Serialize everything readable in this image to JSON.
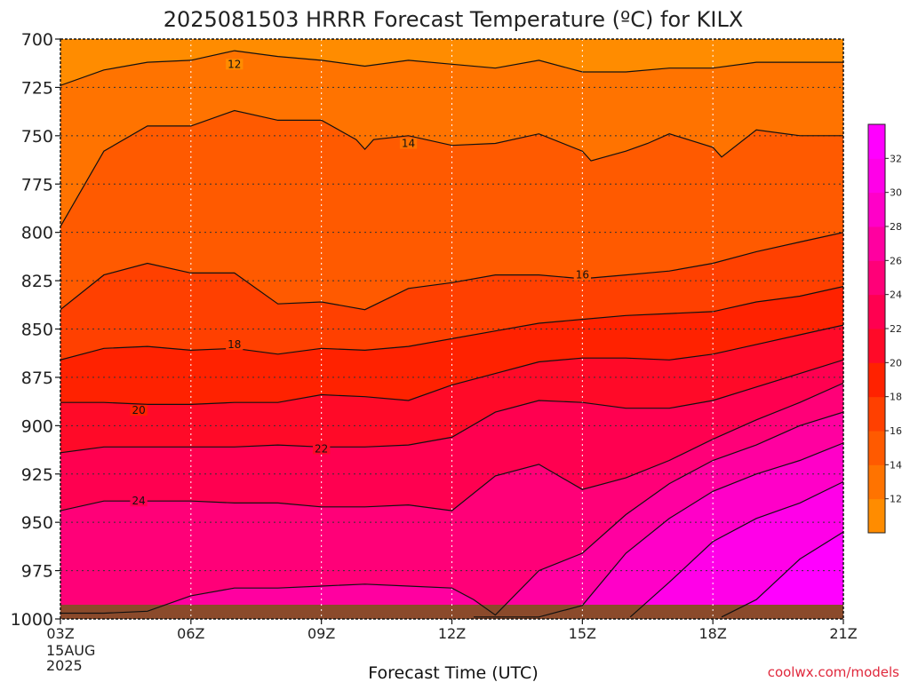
{
  "chart_data": {
    "type": "contour",
    "title": "2025081503 HRRR Forecast Temperature (ºC) for KILX",
    "xlabel": "Forecast Time (UTC)",
    "ylabel": "",
    "x_tick_labels": [
      "03Z",
      "06Z",
      "09Z",
      "12Z",
      "15Z",
      "18Z",
      "21Z"
    ],
    "x_start_date": [
      "15AUG",
      "2025"
    ],
    "x_hours": [
      3,
      6,
      9,
      12,
      15,
      18,
      21
    ],
    "x_range": [
      3,
      21
    ],
    "y_tick_labels": [
      "700",
      "725",
      "750",
      "775",
      "800",
      "825",
      "850",
      "875",
      "900",
      "925",
      "950",
      "975",
      "1000"
    ],
    "y_values": [
      700,
      725,
      750,
      775,
      800,
      825,
      850,
      875,
      900,
      925,
      950,
      975,
      1000
    ],
    "y_range": [
      700,
      1000
    ],
    "y_axis_inverted": true,
    "grid": true,
    "colorbar": {
      "placement": "right",
      "levels": [
        10,
        12,
        14,
        16,
        18,
        20,
        22,
        24,
        26,
        28,
        30,
        32,
        34
      ],
      "tick_labels": [
        "12",
        "14",
        "16",
        "18",
        "20",
        "22",
        "24",
        "26",
        "28",
        "30",
        "32"
      ],
      "colors": [
        "#ff8c00",
        "#ff7300",
        "#ff5a00",
        "#ff4000",
        "#ff2200",
        "#ff0a28",
        "#ff0050",
        "#ff0078",
        "#ff00a0",
        "#ff00c8",
        "#ff00e8",
        "#ff00ff"
      ]
    },
    "contours": [
      {
        "level": 12,
        "label": "12",
        "label_at": [
          7.0,
          713
        ],
        "x": [
          3,
          4,
          5,
          6,
          7,
          8,
          9,
          10,
          11,
          12,
          13,
          14,
          15,
          16,
          17,
          18,
          19,
          20,
          21
        ],
        "y": [
          724,
          716,
          712,
          711,
          706,
          709,
          711,
          714,
          711,
          713,
          715,
          711,
          717,
          717,
          715,
          715,
          712,
          712,
          712
        ]
      },
      {
        "level": 14,
        "label": "14",
        "label_at": [
          11.0,
          754
        ],
        "x": [
          3,
          4,
          5,
          6,
          7,
          8,
          9,
          9.8,
          10,
          10.2,
          11,
          12,
          13,
          14,
          15,
          15.2,
          16,
          16.5,
          17,
          18,
          18.2,
          19,
          20,
          21
        ],
        "y": [
          797,
          758,
          745,
          745,
          737,
          742,
          742,
          752,
          757,
          752,
          750,
          755,
          754,
          749,
          758,
          763,
          758,
          754,
          749,
          756,
          761,
          747,
          750,
          750
        ]
      },
      {
        "level": 16,
        "label": "16",
        "label_at": [
          15.0,
          822
        ],
        "x": [
          3,
          4,
          5,
          6,
          7,
          8,
          9,
          10,
          11,
          12,
          13,
          14,
          15,
          16,
          17,
          18,
          19,
          20,
          21
        ],
        "y": [
          840,
          822,
          816,
          821,
          821,
          837,
          836,
          840,
          829,
          826,
          822,
          822,
          824,
          822,
          820,
          816,
          810,
          805,
          800
        ]
      },
      {
        "level": 18,
        "label": "18",
        "label_at": [
          7.0,
          858
        ],
        "x": [
          3,
          4,
          5,
          6,
          7,
          8,
          9,
          10,
          11,
          12,
          13,
          14,
          15,
          16,
          17,
          18,
          19,
          20,
          21
        ],
        "y": [
          866,
          860,
          859,
          861,
          860,
          863,
          860,
          861,
          859,
          855,
          851,
          847,
          845,
          843,
          842,
          841,
          836,
          833,
          828
        ]
      },
      {
        "level": 20,
        "label": "20",
        "label_at": [
          4.8,
          892
        ],
        "x": [
          3,
          4,
          5,
          6,
          7,
          8,
          9,
          10,
          11,
          12,
          13,
          14,
          15,
          16,
          17,
          18,
          19,
          20,
          21
        ],
        "y": [
          888,
          888,
          889,
          889,
          888,
          888,
          884,
          885,
          887,
          879,
          873,
          867,
          865,
          865,
          866,
          863,
          858,
          853,
          848
        ]
      },
      {
        "level": 22,
        "label": "22",
        "label_at": [
          9.0,
          912
        ],
        "x": [
          3,
          4,
          5,
          6,
          7,
          8,
          9,
          10,
          11,
          12,
          13,
          14,
          15,
          16,
          17,
          18,
          19,
          20,
          21
        ],
        "y": [
          914,
          911,
          911,
          911,
          911,
          910,
          911,
          911,
          910,
          906,
          893,
          887,
          888,
          891,
          891,
          887,
          880,
          873,
          866
        ]
      },
      {
        "level": 24,
        "label": "24",
        "label_at": [
          4.8,
          939
        ],
        "x": [
          3,
          4,
          5,
          6,
          7,
          8,
          9,
          10,
          11,
          12,
          13,
          14,
          15,
          16,
          17,
          18,
          19,
          20,
          21
        ],
        "y": [
          944,
          939,
          939,
          939,
          940,
          940,
          942,
          942,
          941,
          944,
          926,
          920,
          933,
          927,
          918,
          907,
          897,
          888,
          878
        ]
      },
      {
        "level": 26,
        "label": "",
        "x": [
          3,
          4,
          5,
          6,
          7,
          8,
          9,
          10,
          11,
          12,
          12.5,
          13,
          14,
          15,
          16,
          17,
          18,
          19,
          20,
          21
        ],
        "y": [
          997,
          997,
          996,
          988,
          984,
          984,
          983,
          982,
          983,
          984,
          990,
          998,
          975,
          966,
          946,
          930,
          918,
          910,
          900,
          893
        ]
      },
      {
        "level": 28,
        "label": "",
        "x": [
          12.5,
          13,
          14,
          15,
          16,
          17,
          18,
          19,
          20,
          21
        ],
        "y": [
          999,
          999,
          999,
          993,
          966,
          948,
          934,
          925,
          918,
          909
        ]
      },
      {
        "level": 30,
        "label": "",
        "x": [
          16.1,
          17,
          18,
          19,
          20,
          21
        ],
        "y": [
          999,
          981,
          960,
          948,
          940,
          929
        ]
      },
      {
        "level": 32,
        "label": "",
        "x": [
          18.2,
          19,
          20,
          21
        ],
        "y": [
          999,
          990,
          969,
          955
        ]
      }
    ]
  },
  "credit": "coolwx.com/models"
}
